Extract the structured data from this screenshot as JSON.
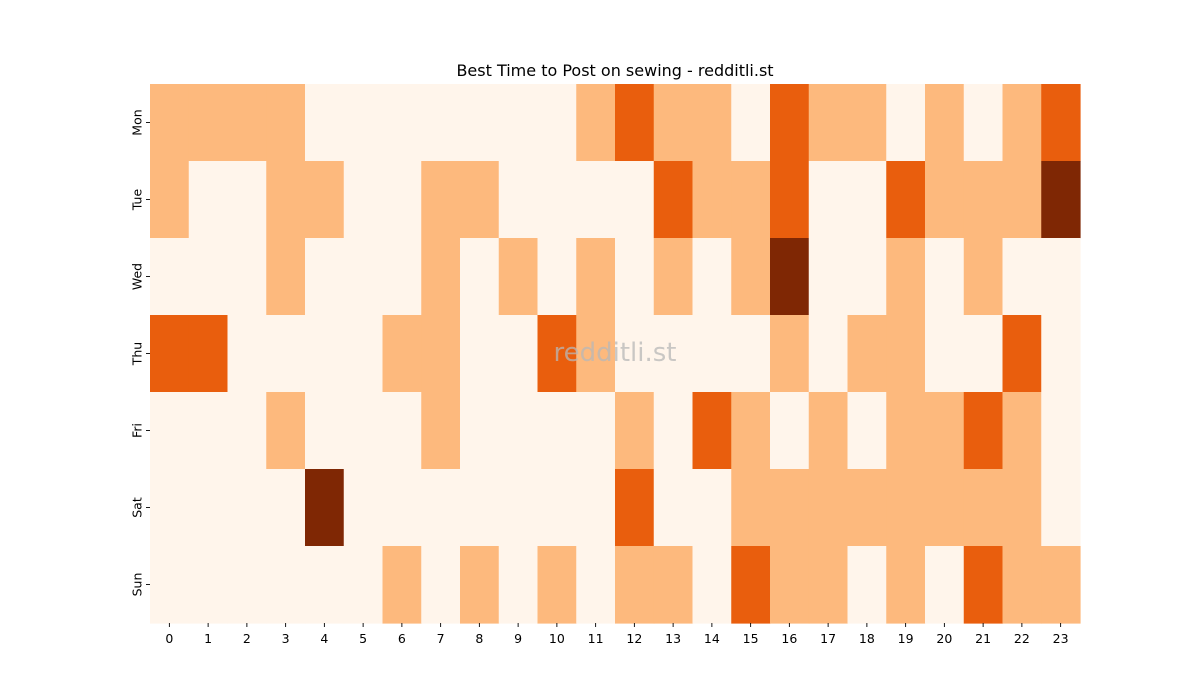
{
  "chart_data": {
    "type": "heatmap",
    "title": "Best Time to Post on sewing - redditli.st",
    "xlabel": "",
    "ylabel": "",
    "x_categories": [
      "0",
      "1",
      "2",
      "3",
      "4",
      "5",
      "6",
      "7",
      "8",
      "9",
      "10",
      "11",
      "12",
      "13",
      "14",
      "15",
      "16",
      "17",
      "18",
      "19",
      "20",
      "21",
      "22",
      "23"
    ],
    "y_categories": [
      "Mon",
      "Tue",
      "Wed",
      "Thu",
      "Fri",
      "Sat",
      "Sun"
    ],
    "values": [
      [
        1,
        1,
        1,
        1,
        0,
        0,
        0,
        0,
        0,
        0,
        0,
        1,
        2,
        1,
        1,
        0,
        2,
        1,
        1,
        0,
        1,
        0,
        1,
        2
      ],
      [
        1,
        0,
        0,
        1,
        1,
        0,
        0,
        1,
        1,
        0,
        0,
        0,
        0,
        2,
        1,
        1,
        2,
        0,
        0,
        2,
        1,
        1,
        1,
        3
      ],
      [
        0,
        0,
        0,
        1,
        0,
        0,
        0,
        1,
        0,
        1,
        0,
        1,
        0,
        1,
        0,
        1,
        3,
        0,
        0,
        1,
        0,
        1,
        0,
        0
      ],
      [
        2,
        2,
        0,
        0,
        0,
        0,
        1,
        1,
        0,
        0,
        2,
        1,
        0,
        0,
        0,
        0,
        1,
        0,
        1,
        1,
        0,
        0,
        2,
        0
      ],
      [
        0,
        0,
        0,
        1,
        0,
        0,
        0,
        1,
        0,
        0,
        0,
        0,
        1,
        0,
        2,
        1,
        0,
        1,
        0,
        1,
        1,
        2,
        1,
        0
      ],
      [
        0,
        0,
        0,
        0,
        3,
        0,
        0,
        0,
        0,
        0,
        0,
        0,
        2,
        0,
        0,
        1,
        1,
        1,
        1,
        1,
        1,
        1,
        1,
        0
      ],
      [
        0,
        0,
        0,
        0,
        0,
        0,
        1,
        0,
        1,
        0,
        1,
        0,
        1,
        1,
        0,
        2,
        1,
        1,
        0,
        1,
        0,
        2,
        1,
        1
      ]
    ],
    "colorscale": [
      "#fff5eb",
      "#fdb97d",
      "#e95e0d",
      "#7f2704"
    ],
    "grid": false,
    "colorbar": false,
    "watermark": "redditli.st"
  }
}
